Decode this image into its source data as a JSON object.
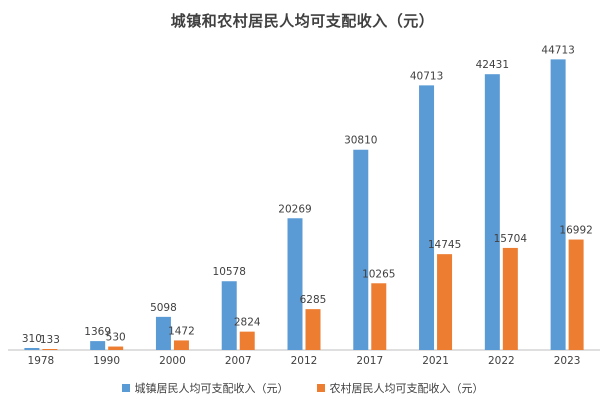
{
  "chart_data": {
    "type": "bar",
    "title": "城镇和农村居民人均可支配收入（元）",
    "categories": [
      "1978",
      "1990",
      "2000",
      "2007",
      "2012",
      "2017",
      "2021",
      "2022",
      "2023"
    ],
    "series": [
      {
        "name": "城镇居民人均可支配收入（元）",
        "values": [
          310,
          1369,
          5098,
          10578,
          20269,
          30810,
          40713,
          42431,
          44713
        ],
        "color": "#5B9BD5"
      },
      {
        "name": "农村居民人均可支配收入（元）",
        "values": [
          133,
          530,
          1472,
          2824,
          6285,
          10265,
          14745,
          15704,
          16992
        ],
        "color": "#ED7D31"
      }
    ],
    "ylim": [
      0,
      50000
    ],
    "grid": false,
    "legend_position": "bottom",
    "data_labels": true
  }
}
